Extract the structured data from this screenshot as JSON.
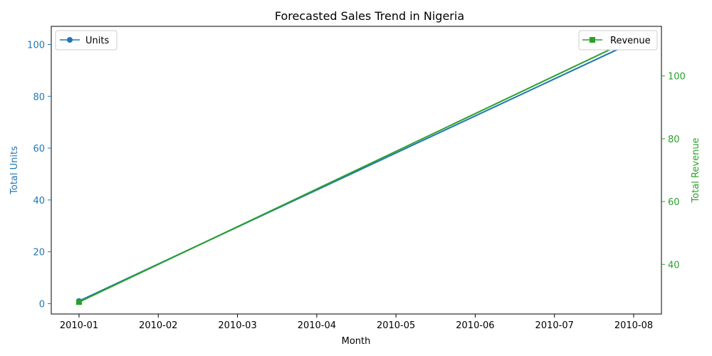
{
  "chart_data": {
    "type": "line",
    "title": "Forecasted Sales Trend in Nigeria",
    "xlabel": "Month",
    "ylabel_left": "Total Units",
    "ylabel_right": "Total Revenue",
    "x_ticks": [
      "2010-01",
      "2010-02",
      "2010-03",
      "2010-04",
      "2010-05",
      "2010-06",
      "2010-07",
      "2010-08"
    ],
    "x": [
      "2010-01",
      "2010-08"
    ],
    "series": [
      {
        "name": "Units",
        "axis": "left",
        "marker": "circle",
        "color": "#1f77b4",
        "values": [
          1,
          101
        ]
      },
      {
        "name": "Revenue",
        "axis": "right",
        "marker": "square",
        "color": "#2ca02c",
        "values": [
          28,
          112
        ]
      }
    ],
    "y_left_ticks": [
      0,
      20,
      40,
      60,
      80,
      100
    ],
    "y_right_ticks": [
      40,
      60,
      80,
      100
    ],
    "y_left_range": [
      -4,
      107
    ],
    "y_right_range": [
      24.2,
      115.8
    ],
    "legend": {
      "left_position": "upper-left",
      "right_position": "upper-right"
    },
    "grid": false
  }
}
